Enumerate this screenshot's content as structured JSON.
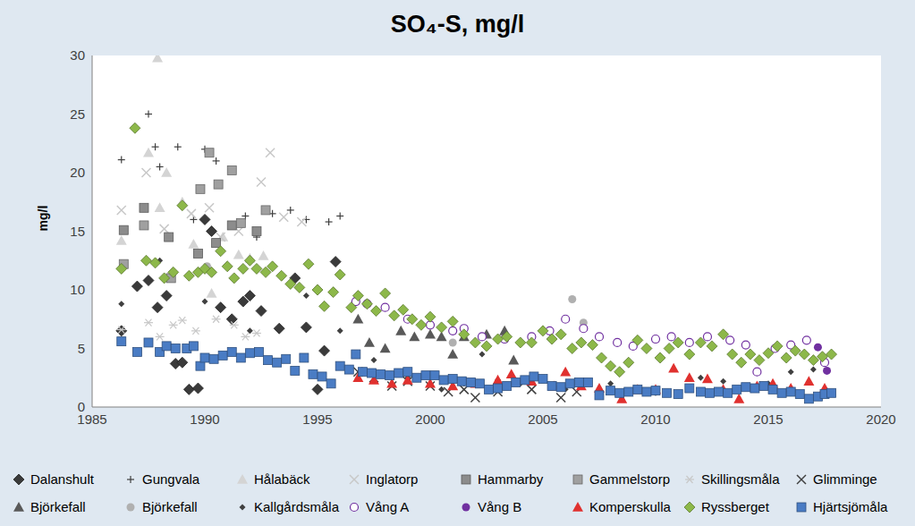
{
  "chart_data": {
    "type": "scatter",
    "title": "SO₄-S, mg/l",
    "y_label": "mg/l",
    "xlim": [
      1985,
      2020
    ],
    "xticks": [
      1985,
      1990,
      1995,
      2000,
      2005,
      2010,
      2015,
      2020
    ],
    "ylim": [
      0,
      30
    ],
    "yticks": [
      0,
      5,
      10,
      15,
      20,
      25,
      30
    ],
    "grid": false,
    "legend": "bottom",
    "series": [
      {
        "name": "Dalanshult",
        "color": "#3a3a3a",
        "marker": "diamond",
        "x": [
          1986.3,
          1987,
          1987.5,
          1987.9,
          1988.3,
          1988.7,
          1989,
          1989.3,
          1989.7,
          1990,
          1990.3,
          1990.7,
          1991.2,
          1991.7,
          1992,
          1992.5,
          1993.3,
          1994,
          1994.5,
          1995,
          1995.3,
          1995.8
        ],
        "values": [
          6.5,
          10.3,
          10.8,
          8.5,
          9.5,
          3.7,
          3.8,
          1.5,
          1.6,
          16,
          15,
          8.5,
          7.5,
          9,
          9.5,
          8.2,
          6.7,
          11,
          6.8,
          1.5,
          4.8,
          12.4
        ]
      },
      {
        "name": "Gungvala",
        "color": "#404040",
        "marker": "plus",
        "x": [
          1986.3,
          1987.5,
          1987.8,
          1988,
          1988.8,
          1989.5,
          1990,
          1990.5,
          1991.3,
          1991.8,
          1992.3,
          1993,
          1993.8,
          1994.5,
          1995.5,
          1996
        ],
        "values": [
          21.1,
          25,
          22.2,
          20.5,
          22.2,
          16,
          22,
          21,
          15.5,
          16.3,
          14.5,
          16.5,
          16.8,
          16,
          15.8,
          16.3
        ]
      },
      {
        "name": "Hålabäck",
        "color": "#d4d4d4",
        "marker": "triangle",
        "x": [
          1986.3,
          1987.5,
          1987.9,
          1988,
          1988.3,
          1989,
          1989.5,
          1990.3,
          1990.8,
          1991.5,
          1992,
          1992.6
        ],
        "values": [
          14.2,
          21.7,
          29.8,
          17,
          20,
          17.5,
          13.9,
          9.7,
          14.5,
          13,
          12.7,
          12.9
        ]
      },
      {
        "name": "Inglatorp",
        "color": "#c8c8c8",
        "marker": "x",
        "x": [
          1986.3,
          1987.4,
          1988.2,
          1989.4,
          1990.2,
          1990.7,
          1991.5,
          1992.5,
          1992.9,
          1993.5,
          1994.3
        ],
        "values": [
          16.8,
          20,
          15.2,
          16.5,
          17,
          14.5,
          15,
          19.2,
          21.7,
          16.2,
          15.8
        ]
      },
      {
        "name": "Hammarby",
        "color": "#8c8c8c",
        "marker": "square",
        "x": [
          1986.4,
          1987.3,
          1988.4,
          1989.7,
          1990.5,
          1991.2,
          1992.3
        ],
        "values": [
          15.1,
          17,
          14.5,
          13.1,
          14,
          15.5,
          15
        ]
      },
      {
        "name": "Gammelstorp",
        "color": "#a0a0a0",
        "marker": "square",
        "x": [
          1986.4,
          1987.3,
          1988.5,
          1989.8,
          1990.2,
          1990.6,
          1991.2,
          1991.6,
          1992.7
        ],
        "values": [
          12.2,
          15.5,
          11,
          18.6,
          21.7,
          19,
          20.2,
          15.7,
          16.8
        ]
      },
      {
        "name": "Skillingsmåla",
        "color": "#c8c8c8",
        "marker": "asterisk",
        "x": [
          1986.3,
          1987.5,
          1988,
          1988.6,
          1989,
          1989.6,
          1990.5,
          1991.3,
          1991.8,
          1992.3
        ],
        "values": [
          6.6,
          7.2,
          6,
          7,
          7.4,
          6.5,
          7.5,
          7,
          6,
          6.3
        ]
      },
      {
        "name": "Glimminge",
        "color": "#404040",
        "marker": "x",
        "x": [
          1996.8,
          1997.5,
          1998.3,
          1999,
          2000,
          2000.8,
          2001.5,
          2002,
          2003,
          2004.5,
          2005.8,
          2006.5
        ],
        "values": [
          3,
          2.5,
          1.8,
          2.2,
          1.8,
          1.3,
          1.5,
          0.8,
          1.3,
          1.5,
          0.8,
          1.3
        ]
      },
      {
        "name": "Björkefall",
        "color": "#595959",
        "marker": "triangle",
        "x": [
          1996.8,
          1997.3,
          1998,
          1998.7,
          1999.3,
          2000,
          2000.5,
          2001,
          2001.5,
          2002.5,
          2003.3,
          2003.7
        ],
        "values": [
          7.5,
          5.5,
          5,
          6.5,
          6,
          6.2,
          6,
          4.5,
          6,
          6.2,
          6.5,
          4
        ]
      },
      {
        "name": "Björkefall",
        "color": "#b0b0b0",
        "marker": "circle",
        "x": [
          1990.1,
          2001,
          2006.3,
          2006.8
        ],
        "values": [
          12,
          5.5,
          9.2,
          7.2
        ]
      },
      {
        "name": "Kallgårdsmåla",
        "color": "#404040",
        "marker": "small_diamond",
        "x": [
          1986.3,
          1988,
          1990,
          1992,
          1994.5,
          1996,
          1997.5,
          1999,
          2000.5,
          2001.5,
          2002.3,
          2003,
          2004,
          2006,
          2008,
          2010,
          2011,
          2012,
          2013,
          2015,
          2016,
          2017
        ],
        "values": [
          8.8,
          12.5,
          9,
          6.5,
          9.5,
          6.5,
          4,
          2.5,
          1.5,
          2,
          4.5,
          2.3,
          2,
          1.5,
          2,
          1.2,
          1,
          2.5,
          2.2,
          2,
          3,
          3.2
        ]
      },
      {
        "name": "Vång A",
        "color": "#7030a0",
        "marker": "open_circle",
        "x": [
          1996.7,
          1997.2,
          1998,
          1999,
          2000,
          2001,
          2001.5,
          2002.3,
          2003.3,
          2004.5,
          2005.3,
          2006,
          2006.8,
          2007.5,
          2008.3,
          2009,
          2010,
          2010.7,
          2011.5,
          2012.3,
          2013.3,
          2014,
          2014.5,
          2015.3,
          2016,
          2016.7,
          2017.5
        ],
        "values": [
          9,
          8.8,
          8.5,
          7.5,
          7,
          6.5,
          6.7,
          6,
          5.8,
          6,
          6.5,
          7.5,
          6.7,
          6,
          5.5,
          5.2,
          5.8,
          6,
          5.5,
          6,
          5.7,
          5.3,
          3,
          5,
          5.3,
          5.7,
          3.8
        ]
      },
      {
        "name": "Vång B",
        "color": "#7030a0",
        "marker": "circle",
        "x": [
          2017.2,
          2017.6
        ],
        "values": [
          5.1,
          3.1
        ]
      },
      {
        "name": "Komperskulla",
        "color": "#e0312f",
        "marker": "triangle",
        "x": [
          1996.8,
          1997.5,
          1998.3,
          1999,
          2000,
          2001,
          2002,
          2003,
          2003.6,
          2004.5,
          2005.5,
          2006,
          2006.7,
          2007.5,
          2008.5,
          2009.2,
          2010,
          2010.8,
          2011.5,
          2012.3,
          2013,
          2013.7,
          2014.5,
          2015.2,
          2016,
          2016.8,
          2017.5
        ],
        "values": [
          2.5,
          2.3,
          2,
          2.3,
          2,
          1.8,
          2,
          2.3,
          2.8,
          2.2,
          1.8,
          3,
          1.8,
          1.6,
          0.7,
          1.5,
          1.5,
          3.3,
          2.5,
          2.4,
          1.5,
          0.7,
          1.8,
          2,
          1.6,
          2.2,
          1.6
        ]
      },
      {
        "name": "Ryssberget",
        "color": "#8db84a",
        "marker": "diamond",
        "x": [
          1986.3,
          1986.9,
          1987.4,
          1987.8,
          1988.2,
          1988.6,
          1989,
          1989.3,
          1989.7,
          1990,
          1990.3,
          1990.7,
          1991,
          1991.3,
          1991.7,
          1992,
          1992.3,
          1992.7,
          1993,
          1993.4,
          1993.8,
          1994.2,
          1994.6,
          1995,
          1995.3,
          1995.7,
          1996,
          1996.5,
          1996.8,
          1997.2,
          1997.6,
          1998,
          1998.4,
          1998.8,
          1999.2,
          1999.6,
          2000,
          2000.5,
          2001,
          2001.5,
          2002,
          2002.5,
          2003,
          2003.4,
          2004,
          2004.5,
          2005,
          2005.4,
          2005.8,
          2006.3,
          2006.7,
          2007.2,
          2007.6,
          2008,
          2008.4,
          2008.8,
          2009.2,
          2009.6,
          2010.2,
          2010.6,
          2011,
          2011.5,
          2012,
          2012.5,
          2013,
          2013.4,
          2013.8,
          2014.2,
          2014.6,
          2015,
          2015.4,
          2015.8,
          2016.2,
          2016.6,
          2017,
          2017.4,
          2017.8
        ],
        "values": [
          11.8,
          23.8,
          12.5,
          12.3,
          11,
          11.5,
          17.2,
          11.2,
          11.5,
          11.8,
          11.5,
          13.3,
          12,
          11,
          11.8,
          12.5,
          11.8,
          11.5,
          12,
          11.2,
          10.5,
          10.2,
          12.2,
          10,
          8.6,
          9.8,
          11.3,
          8.5,
          9.5,
          8.8,
          8.2,
          9.7,
          7.8,
          8.3,
          7.5,
          7,
          7.7,
          6.8,
          7.3,
          6.2,
          5.5,
          5.2,
          5.8,
          6,
          5.5,
          5.5,
          6.5,
          5.8,
          6.2,
          5,
          5.5,
          5.3,
          4.2,
          3.5,
          3,
          3.8,
          5.7,
          5,
          4.2,
          5,
          5.5,
          4.5,
          5.5,
          5.2,
          6.2,
          4.5,
          3.8,
          4.5,
          4,
          4.6,
          5.2,
          4.2,
          4.8,
          4.5,
          4,
          4.3,
          4.5
        ]
      },
      {
        "name": "Hjärtsjömåla",
        "color": "#4a7cc4",
        "marker": "square",
        "x": [
          1986.3,
          1987,
          1987.5,
          1988,
          1988.3,
          1988.7,
          1989.2,
          1989.5,
          1989.8,
          1990,
          1990.4,
          1990.8,
          1991.2,
          1991.6,
          1992,
          1992.4,
          1992.8,
          1993.2,
          1993.6,
          1994,
          1994.4,
          1994.8,
          1995.2,
          1995.6,
          1996,
          1996.4,
          1996.7,
          1997,
          1997.4,
          1997.8,
          1998.2,
          1998.6,
          1999,
          1999.4,
          1999.8,
          2000.2,
          2000.6,
          2001,
          2001.4,
          2001.8,
          2002.2,
          2002.6,
          2003,
          2003.4,
          2003.8,
          2004.2,
          2004.6,
          2005,
          2005.4,
          2005.8,
          2006.2,
          2006.6,
          2007,
          2007.5,
          2008,
          2008.4,
          2008.8,
          2009.2,
          2009.6,
          2010,
          2010.5,
          2011,
          2011.5,
          2012,
          2012.4,
          2012.8,
          2013.2,
          2013.6,
          2014,
          2014.4,
          2014.8,
          2015.2,
          2015.6,
          2016,
          2016.4,
          2016.8,
          2017.2,
          2017.5,
          2017.8
        ],
        "values": [
          5.6,
          4.7,
          5.5,
          4.7,
          5.2,
          5,
          5,
          5.2,
          3.5,
          4.2,
          4.1,
          4.4,
          4.7,
          4.2,
          4.6,
          4.7,
          4,
          3.8,
          4.1,
          3.1,
          4.2,
          2.8,
          2.6,
          2,
          3.5,
          3.2,
          4.5,
          3,
          2.9,
          2.8,
          2.7,
          2.9,
          3,
          2.5,
          2.7,
          2.7,
          2.3,
          2.4,
          2.2,
          2.1,
          2,
          1.5,
          1.6,
          1.8,
          2.1,
          2.3,
          2.6,
          2.4,
          1.8,
          1.7,
          2,
          2.1,
          2.1,
          1,
          1.4,
          1.2,
          1.3,
          1.5,
          1.3,
          1.4,
          1.2,
          1.1,
          1.6,
          1.3,
          1.2,
          1.3,
          1.2,
          1.5,
          1.7,
          1.6,
          1.8,
          1.5,
          1.2,
          1.3,
          1.1,
          0.7,
          0.9,
          1.1,
          1.2
        ]
      }
    ]
  }
}
